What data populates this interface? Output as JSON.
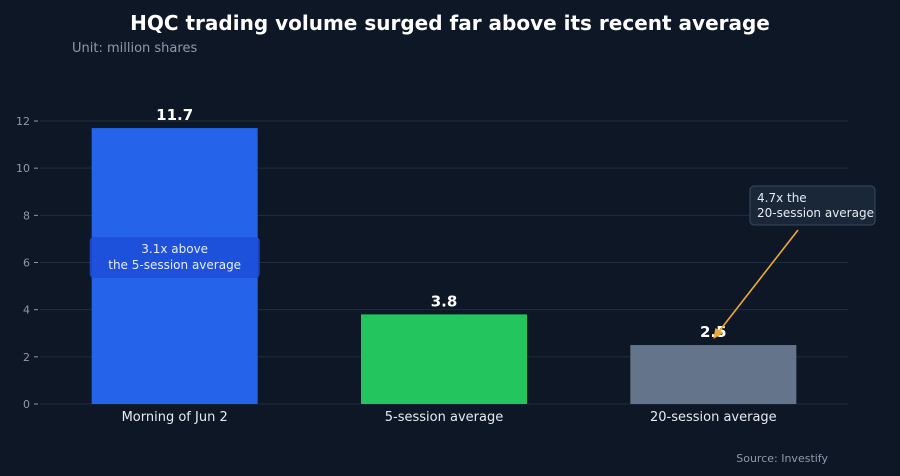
{
  "chart_data": {
    "type": "bar",
    "title": "HQC trading volume surged far above its recent average",
    "subtitle": "Unit: million shares",
    "categories": [
      "Morning of Jun 2",
      "5-session average",
      "20-session average"
    ],
    "values": [
      11.7,
      3.8,
      2.5
    ],
    "value_labels": [
      "11.7",
      "3.8",
      "2.5"
    ],
    "colors": [
      "#2563eb",
      "#22c55e",
      "#64748b"
    ],
    "ylim": [
      0,
      12
    ],
    "yticks": [
      0,
      2,
      4,
      6,
      8,
      10,
      12
    ],
    "ytick_labels": [
      "0",
      "2",
      "4",
      "6",
      "8",
      "10",
      "12"
    ],
    "grid": true,
    "annotations": [
      {
        "lines": [
          "3.1x above",
          "the 5-session average"
        ]
      },
      {
        "lines": [
          "4.7x the",
          "20-session average"
        ],
        "arrow_to_category": "20-session average",
        "arrow_to_value": 2.5
      }
    ],
    "source": "Source: Investify"
  },
  "colors": {
    "background": "#0d1726",
    "grid": "#1f2d40",
    "axis_text": "#8d99ad",
    "title": "#ffffff",
    "subtitle": "#8d99ad",
    "arrow": "#f0a830"
  }
}
